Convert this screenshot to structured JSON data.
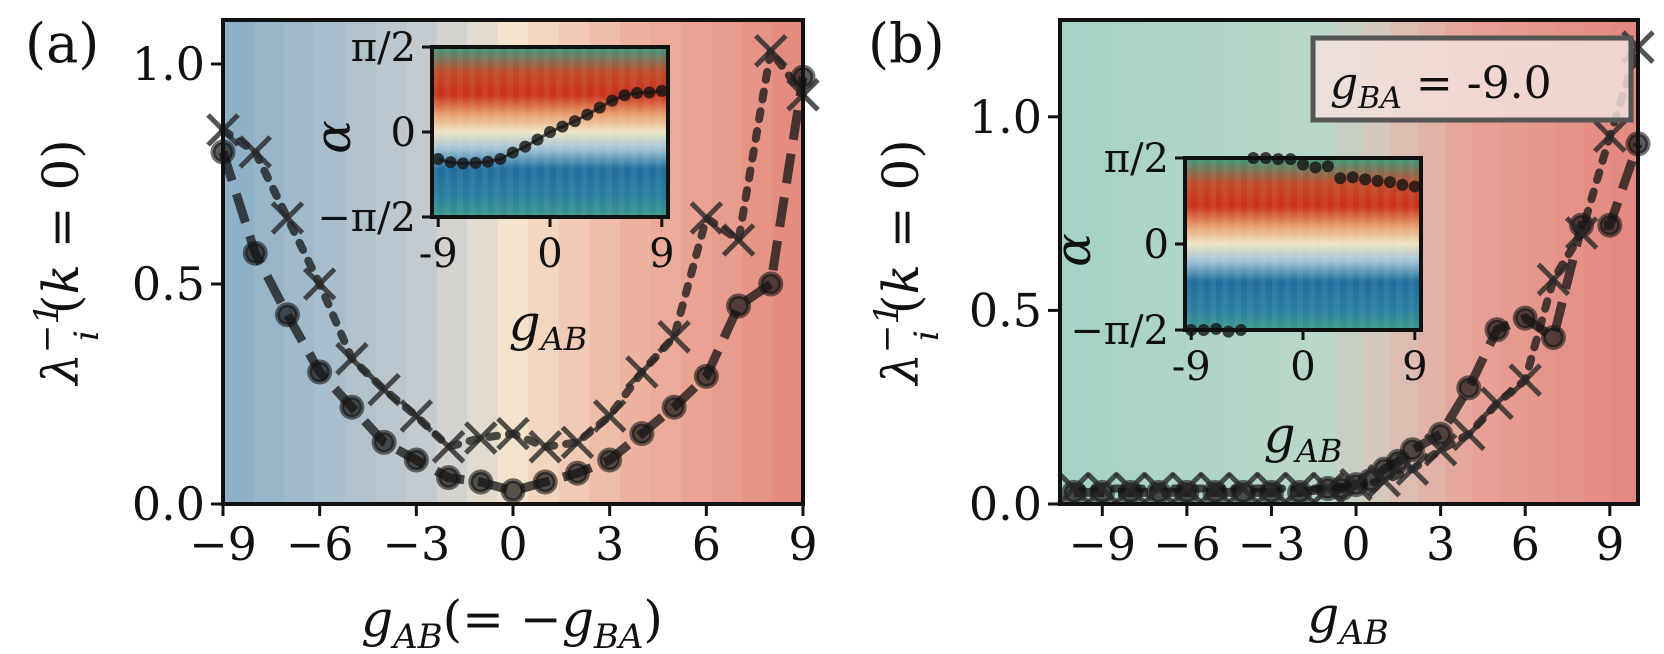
{
  "chart_data": [
    {
      "type": "line",
      "panel_label": "(a)",
      "xlabel": "g_AB(= −g_BA)",
      "ylabel": "λ_i^−1(k = 0)",
      "xlim": [
        -9,
        9
      ],
      "ylim": [
        0,
        1.1
      ],
      "xticks": [
        -9,
        -6,
        -3,
        0,
        3,
        6,
        9
      ],
      "xtick_labels": [
        "−9",
        "−6",
        "−3",
        "0",
        "3",
        "6",
        "9"
      ],
      "yticks": [
        0,
        0.5,
        1.0
      ],
      "ytick_labels": [
        "0.0",
        "0.5",
        "1.0"
      ],
      "background": "vertical color bands from blue (left) through beige (center) to red (right)",
      "series": [
        {
          "marker": "circle",
          "linestyle": "dashed",
          "x": [
            -9,
            -8,
            -7,
            -6,
            -5,
            -4,
            -3,
            -2,
            -1,
            0,
            1,
            2,
            3,
            4,
            5,
            6,
            7,
            8,
            9
          ],
          "y": [
            0.8,
            0.57,
            0.43,
            0.3,
            0.22,
            0.14,
            0.1,
            0.06,
            0.05,
            0.03,
            0.05,
            0.07,
            0.1,
            0.16,
            0.22,
            0.29,
            0.45,
            0.5,
            0.97
          ]
        },
        {
          "marker": "x",
          "linestyle": "dotted",
          "x": [
            -9,
            -8,
            -7,
            -6,
            -5,
            -4,
            -3,
            -2,
            -1,
            0,
            1,
            2,
            3,
            4,
            5,
            6,
            7,
            8,
            9
          ],
          "y": [
            0.85,
            0.8,
            0.65,
            0.5,
            0.33,
            0.26,
            0.2,
            0.13,
            0.15,
            0.16,
            0.13,
            0.14,
            0.2,
            0.3,
            0.38,
            0.65,
            0.6,
            1.03,
            0.93
          ]
        }
      ],
      "inset": {
        "xlabel": "g_AB",
        "ylabel": "α",
        "xlim": [
          -9.5,
          9.5
        ],
        "ylim": [
          -1.5708,
          1.5708
        ],
        "xticks": [
          -9,
          0,
          9
        ],
        "xtick_labels": [
          "-9",
          "0",
          "9"
        ],
        "ytick_labels": [
          "π/2",
          "0",
          "−π/2"
        ],
        "x": [
          -9,
          -8,
          -7,
          -6,
          -5,
          -4,
          -3,
          -2,
          -1,
          0,
          1,
          2,
          3,
          4,
          5,
          6,
          7,
          8,
          9
        ],
        "y": [
          -0.5,
          -0.56,
          -0.58,
          -0.57,
          -0.55,
          -0.5,
          -0.38,
          -0.27,
          -0.14,
          0.0,
          0.1,
          0.2,
          0.32,
          0.45,
          0.58,
          0.68,
          0.72,
          0.73,
          0.76
        ]
      }
    },
    {
      "type": "line",
      "panel_label": "(b)",
      "xlabel": "g_AB",
      "ylabel": "λ_i^−1(k = 0)",
      "legend_text": "g_BA = -9.0",
      "legend_placement": "top-right",
      "xlim": [
        -10.5,
        10.0
      ],
      "ylim": [
        0,
        1.25
      ],
      "xticks": [
        -9,
        -6,
        -3,
        0,
        3,
        6,
        9
      ],
      "xtick_labels": [
        "−9",
        "−6",
        "−3",
        "0",
        "3",
        "6",
        "9"
      ],
      "yticks": [
        0,
        0.5,
        1.0
      ],
      "ytick_labels": [
        "0.0",
        "0.5",
        "1.0"
      ],
      "background": "vertical color bands from teal-green (left) to red (right)",
      "series": [
        {
          "marker": "circle",
          "linestyle": "dashed",
          "x": [
            -10,
            -9,
            -8,
            -7,
            -6,
            -5,
            -4,
            -3,
            -2,
            -1,
            -0.5,
            0,
            0.5,
            1,
            1.5,
            2,
            3,
            4,
            5,
            6,
            7,
            8,
            9,
            10
          ],
          "y": [
            0.03,
            0.03,
            0.03,
            0.03,
            0.03,
            0.03,
            0.03,
            0.03,
            0.03,
            0.04,
            0.04,
            0.05,
            0.06,
            0.09,
            0.11,
            0.14,
            0.18,
            0.3,
            0.45,
            0.48,
            0.43,
            0.72,
            0.72,
            0.93
          ]
        },
        {
          "marker": "x",
          "linestyle": "dotted",
          "x": [
            -10,
            -9,
            -8,
            -7,
            -6,
            -5,
            -4,
            -3,
            -2,
            -1,
            0,
            1,
            2,
            3,
            4,
            5,
            6,
            7,
            8,
            9,
            10
          ],
          "y": [
            0.04,
            0.04,
            0.04,
            0.04,
            0.04,
            0.04,
            0.04,
            0.04,
            0.04,
            0.04,
            0.05,
            0.06,
            0.09,
            0.14,
            0.18,
            0.26,
            0.32,
            0.58,
            0.7,
            0.95,
            1.18
          ]
        }
      ],
      "inset": {
        "xlabel": "g_AB",
        "ylabel": "α",
        "xlim": [
          -9.5,
          9.5
        ],
        "ylim": [
          -1.5708,
          1.5708
        ],
        "xticks": [
          -9,
          0,
          9
        ],
        "xtick_labels": [
          "-9",
          "0",
          "9"
        ],
        "ytick_labels": [
          "π/2",
          "0",
          "−π/2"
        ],
        "x": [
          -9,
          -8,
          -7,
          -6,
          -5,
          -4,
          -3,
          -2,
          -1,
          0,
          1,
          2,
          3,
          4,
          5,
          6,
          7,
          8,
          9
        ],
        "y": [
          -1.57,
          -1.57,
          -1.55,
          -1.6,
          -1.57,
          1.57,
          1.57,
          1.55,
          1.55,
          1.45,
          1.4,
          1.42,
          1.2,
          1.22,
          1.18,
          1.15,
          1.13,
          1.08,
          1.05
        ]
      }
    }
  ]
}
